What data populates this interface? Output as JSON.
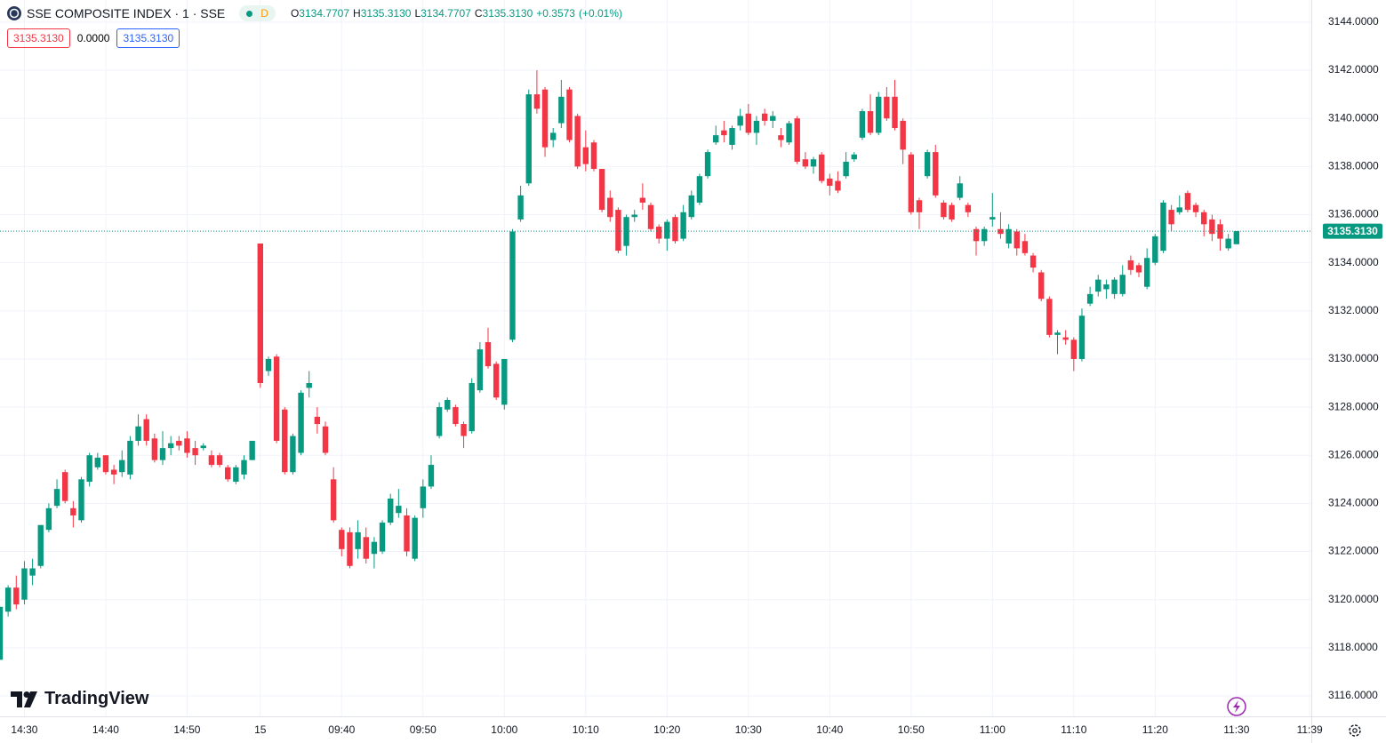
{
  "header": {
    "symbol": "SSE COMPOSITE INDEX · 1 · SSE",
    "interval_badge": "D",
    "ohlc": [
      {
        "key": "O",
        "value": "3134.7707"
      },
      {
        "key": "H",
        "value": "3135.3130"
      },
      {
        "key": "L",
        "value": "3134.7707"
      },
      {
        "key": "C",
        "value": "3135.3130"
      }
    ],
    "change": "+0.3573",
    "change_pct": "(+0.01%)"
  },
  "inputs": [
    "3135.3130",
    "0.0000",
    "3135.3130"
  ],
  "brand": "TradingView",
  "chart_data": {
    "type": "candlestick",
    "up_color": "#089981",
    "down_color": "#f23645",
    "grid": true,
    "open": [
      3117.5,
      3119.5,
      3120.5,
      3120,
      3121,
      3121.4,
      3122.9,
      3123.9,
      3125.3,
      3123.8,
      3123.3,
      3124.9,
      3125.5,
      3126,
      3125.4,
      3125.3,
      3125.2,
      3126.6,
      3127.5,
      3126.7,
      3125.8,
      3126.3,
      3126.6,
      3126.7,
      3126.3,
      3126.3,
      3126,
      3126,
      3125.5,
      3124.9,
      3125.2,
      3125.8,
      3134.8,
      3129.5,
      3130.1,
      3127.9,
      3125.3,
      3126.1,
      3128.8,
      3127.6,
      3127.2,
      3125,
      3122.9,
      3122.8,
      3122.1,
      3122.6,
      3121.9,
      3122,
      3123.2,
      3123.6,
      3123.5,
      3121.7,
      3123.8,
      3124.7,
      3126.8,
      3127.9,
      3128,
      3127.3,
      3127,
      3128.7,
      3130.7,
      3129.8,
      3128.1,
      3130.8,
      3135.8,
      3137.3,
      3141,
      3141.2,
      3139.1,
      3139.8,
      3141.2,
      3140.1,
      3138.8,
      3139,
      3137.9,
      3136.7,
      3136.2,
      3134.7,
      3135.9,
      3136.7,
      3136.4,
      3135.5,
      3135,
      3135.9,
      3135,
      3135.9,
      3136.5,
      3137.6,
      3139,
      3139.5,
      3138.9,
      3139.7,
      3140.2,
      3139.4,
      3140.2,
      3139.9,
      3139.3,
      3139,
      3140,
      3138.3,
      3138,
      3138.5,
      3137.5,
      3137.4,
      3137.6,
      3138.3,
      3139.2,
      3140.3,
      3139.4,
      3140.9,
      3140.9,
      3139.9,
      3138.5,
      3136.6,
      3137.6,
      3138.6,
      3136.5,
      3136.4,
      3136.7,
      3136.4,
      3135.4,
      3134.9,
      3135.8,
      3135.4,
      3134.8,
      3135.3,
      3134.9,
      3134.3,
      3133.6,
      3132.5,
      3131,
      3130.9,
      3130.8,
      3130,
      3132.3,
      3132.8,
      3132.9,
      3132.7,
      3132.7,
      3134.1,
      3133.9,
      3133,
      3134,
      3134.5,
      3136.2,
      3136.1,
      3136.9,
      3136.4,
      3136.1,
      3135.8,
      3135.6,
      3134.6,
      3134.7707
    ],
    "high": [
      3119.7,
      3120.6,
      3121,
      3121.6,
      3121.7,
      3123.1,
      3124,
      3125,
      3125.4,
      3124.1,
      3125.1,
      3126.1,
      3126.1,
      3126,
      3125.6,
      3126.2,
      3126.8,
      3127.7,
      3127.7,
      3126.9,
      3127,
      3126.8,
      3126.8,
      3127,
      3126.6,
      3126.5,
      3126.2,
      3126.1,
      3125.6,
      3125.6,
      3126,
      3126.6,
      3134.8,
      3130.1,
      3130.2,
      3128,
      3126.9,
      3128.7,
      3129.5,
      3128,
      3127.4,
      3125.5,
      3123,
      3123,
      3123.3,
      3123,
      3122.6,
      3123.3,
      3124.4,
      3124.6,
      3123.8,
      3123.5,
      3125,
      3126,
      3128.2,
      3128.4,
      3128.1,
      3127.4,
      3129.2,
      3130.7,
      3131.3,
      3129.9,
      3130,
      3135.4,
      3137.2,
      3141.2,
      3142,
      3141.3,
      3139.6,
      3141.6,
      3141.3,
      3140.2,
      3139.5,
      3139.1,
      3137.9,
      3137,
      3136.3,
      3136,
      3136.2,
      3137.3,
      3136.5,
      3135.6,
      3135.8,
      3136,
      3136.4,
      3137,
      3137.7,
      3138.7,
      3139.7,
      3139.9,
      3139.7,
      3140.4,
      3140.6,
      3140.1,
      3140.4,
      3140.3,
      3139.6,
      3139.9,
      3140.1,
      3138.6,
      3138.4,
      3138.6,
      3137.7,
      3137.8,
      3138.6,
      3138.6,
      3140.4,
      3141,
      3141.1,
      3141.3,
      3141.6,
      3140,
      3138.6,
      3136.7,
      3138.7,
      3138.9,
      3136.6,
      3136.5,
      3137.6,
      3136.5,
      3135.5,
      3135.5,
      3136.9,
      3136.1,
      3135.6,
      3135.4,
      3135.2,
      3134.4,
      3133.7,
      3132.6,
      3131.2,
      3131.2,
      3130.9,
      3132.1,
      3133,
      3133.5,
      3133.3,
      3133.4,
      3133.9,
      3134.3,
      3134,
      3134.6,
      3135.2,
      3136.6,
      3136.4,
      3136.8,
      3137,
      3136.5,
      3136.2,
      3136,
      3135.8,
      3135.2,
      3135.313
    ],
    "low": [
      3117.5,
      3119.3,
      3119.6,
      3119.8,
      3120.6,
      3121.3,
      3122.8,
      3123.8,
      3124,
      3123,
      3123.2,
      3124.7,
      3125.4,
      3125.2,
      3124.8,
      3125.1,
      3125,
      3126.4,
      3126.4,
      3125.7,
      3125.6,
      3126,
      3126.2,
      3125.9,
      3125.6,
      3126.2,
      3125.5,
      3125.5,
      3124.9,
      3124.8,
      3125,
      3125.8,
      3128.8,
      3129.3,
      3126.5,
      3125.2,
      3125.2,
      3126,
      3128.4,
      3126.9,
      3126,
      3123.2,
      3121.8,
      3121.3,
      3121.7,
      3121.5,
      3121.3,
      3121.9,
      3123.1,
      3123.4,
      3121.8,
      3121.6,
      3123.4,
      3124.6,
      3126.7,
      3127.8,
      3127.2,
      3126.3,
      3126.9,
      3128.6,
      3129.6,
      3128.3,
      3127.9,
      3130.7,
      3135.7,
      3137.2,
      3140.2,
      3138.4,
      3138.8,
      3139.6,
      3139,
      3137.9,
      3137.8,
      3137.8,
      3136.1,
      3135.7,
      3134.4,
      3134.3,
      3135.7,
      3136.2,
      3135.3,
      3134.8,
      3134.5,
      3134.8,
      3134.9,
      3135.8,
      3136.4,
      3137.5,
      3138.9,
      3139,
      3138.7,
      3139.5,
      3139.3,
      3138.9,
      3139.7,
      3139.6,
      3138.8,
      3138.9,
      3138.1,
      3137.9,
      3137.7,
      3137.3,
      3136.8,
      3136.9,
      3137.5,
      3138.2,
      3139.1,
      3139.3,
      3139.3,
      3139.9,
      3139.5,
      3138.1,
      3136,
      3135.4,
      3137.5,
      3136.7,
      3135.8,
      3135.7,
      3136.6,
      3135.9,
      3134.3,
      3134.7,
      3135.5,
      3135,
      3134.6,
      3134.3,
      3134.3,
      3133.6,
      3132.4,
      3130.9,
      3130.2,
      3130.6,
      3129.5,
      3129.9,
      3132.2,
      3132.6,
      3132.5,
      3132.5,
      3132.6,
      3133.5,
      3133.4,
      3132.9,
      3133.9,
      3134.4,
      3135.3,
      3136,
      3136.1,
      3135.9,
      3135.1,
      3134.9,
      3134.5,
      3134.5,
      3134.7707
    ],
    "close": [
      3119.7,
      3120.5,
      3119.8,
      3121.3,
      3121.3,
      3123.1,
      3123.8,
      3124.6,
      3124.1,
      3123.5,
      3125,
      3126,
      3125.9,
      3125.3,
      3125.2,
      3125.8,
      3126.6,
      3127.2,
      3126.6,
      3125.8,
      3126.3,
      3126.5,
      3126.4,
      3126.1,
      3126,
      3126.4,
      3125.6,
      3125.6,
      3125,
      3125.5,
      3125.8,
      3126.6,
      3129,
      3130,
      3126.6,
      3125.3,
      3126.8,
      3128.6,
      3129,
      3127.3,
      3126.1,
      3123.3,
      3122.1,
      3121.4,
      3122.8,
      3121.7,
      3122.4,
      3123.2,
      3124.2,
      3123.9,
      3122,
      3123.4,
      3124.7,
      3125.6,
      3128,
      3128.3,
      3127.3,
      3126.8,
      3129,
      3130.4,
      3129.7,
      3128.4,
      3130,
      3135.3,
      3136.8,
      3141,
      3140.4,
      3138.8,
      3139.4,
      3140.9,
      3139.1,
      3138,
      3138.1,
      3137.9,
      3136.2,
      3135.9,
      3134.5,
      3135.9,
      3136,
      3136.5,
      3135.4,
      3135,
      3135.7,
      3134.9,
      3136.1,
      3136.8,
      3137.6,
      3138.6,
      3139.3,
      3139.3,
      3139.6,
      3140.1,
      3139.4,
      3139.9,
      3139.9,
      3140.1,
      3139.1,
      3139.8,
      3138.2,
      3138,
      3138.3,
      3137.4,
      3137.2,
      3137,
      3138.2,
      3138.5,
      3140.3,
      3139.4,
      3140.9,
      3140,
      3139.6,
      3138.7,
      3136.1,
      3136.1,
      3138.6,
      3136.8,
      3135.9,
      3135.8,
      3137.3,
      3136.1,
      3134.9,
      3135.4,
      3135.9,
      3135.2,
      3135.4,
      3134.6,
      3134.4,
      3133.8,
      3132.5,
      3131,
      3131.1,
      3130.8,
      3130,
      3131.8,
      3132.7,
      3133.3,
      3133.1,
      3133.3,
      3133.5,
      3133.7,
      3133.6,
      3134.2,
      3135.1,
      3136.5,
      3135.6,
      3136.3,
      3136.2,
      3136.1,
      3135.6,
      3135.2,
      3135,
      3135,
      3135.313
    ],
    "xlim": [
      0,
      161.2
    ],
    "xticks": [
      {
        "value": 3,
        "label": "14:30"
      },
      {
        "value": 13,
        "label": "14:40"
      },
      {
        "value": 23,
        "label": "14:50"
      },
      {
        "value": 32,
        "label": "15"
      },
      {
        "value": 42,
        "label": "09:40"
      },
      {
        "value": 52,
        "label": "09:50"
      },
      {
        "value": 62,
        "label": "10:00"
      },
      {
        "value": 72,
        "label": "10:10"
      },
      {
        "value": 82,
        "label": "10:20"
      },
      {
        "value": 92,
        "label": "10:30"
      },
      {
        "value": 102,
        "label": "10:40"
      },
      {
        "value": 112,
        "label": "10:50"
      },
      {
        "value": 122,
        "label": "11:00"
      },
      {
        "value": 132,
        "label": "11:10"
      },
      {
        "value": 142,
        "label": "11:20"
      },
      {
        "value": 152,
        "label": "11:30"
      },
      {
        "value": 161,
        "label": "11:39"
      }
    ],
    "ylim": [
      3115.15,
      3144.92
    ],
    "yticks": [
      {
        "value": 3116,
        "label": "3116.0000"
      },
      {
        "value": 3118,
        "label": "3118.0000"
      },
      {
        "value": 3120,
        "label": "3120.0000"
      },
      {
        "value": 3122,
        "label": "3122.0000"
      },
      {
        "value": 3124,
        "label": "3124.0000"
      },
      {
        "value": 3126,
        "label": "3126.0000"
      },
      {
        "value": 3128,
        "label": "3128.0000"
      },
      {
        "value": 3130,
        "label": "3130.0000"
      },
      {
        "value": 3132,
        "label": "3132.0000"
      },
      {
        "value": 3134,
        "label": "3134.0000"
      },
      {
        "value": 3136,
        "label": "3136.0000"
      },
      {
        "value": 3138,
        "label": "3138.0000"
      },
      {
        "value": 3140,
        "label": "3140.0000"
      },
      {
        "value": 3142,
        "label": "3142.0000"
      },
      {
        "value": 3144,
        "label": "3144.0000"
      }
    ],
    "last_price": {
      "value": 3135.313,
      "label": "3135.3130"
    }
  }
}
